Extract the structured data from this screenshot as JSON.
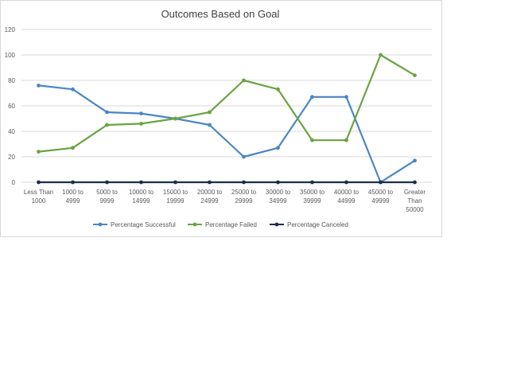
{
  "chart_data": {
    "type": "line",
    "title": "Outcomes Based on Goal",
    "xlabel": "",
    "ylabel": "",
    "ylim": [
      0,
      120
    ],
    "yticks": [
      0,
      20,
      40,
      60,
      80,
      100,
      120
    ],
    "grid": true,
    "legend_position": "bottom",
    "categories": [
      [
        "Less Than",
        "1000"
      ],
      [
        "1000 to",
        "4999"
      ],
      [
        "5000 to",
        "9999"
      ],
      [
        "10000 to",
        "14999"
      ],
      [
        "15000 to",
        "19999"
      ],
      [
        "20000 to",
        "24999"
      ],
      [
        "25000 to",
        "29999"
      ],
      [
        "30000 to",
        "34999"
      ],
      [
        "35000 to",
        "39999"
      ],
      [
        "40000 to",
        "44999"
      ],
      [
        "45000 to",
        "49999"
      ],
      [
        "Greater",
        "Than",
        "50000"
      ]
    ],
    "series": [
      {
        "name": "Percentage Successful",
        "color": "#4a86c5",
        "values": [
          76,
          73,
          55,
          54,
          50,
          45,
          20,
          27,
          67,
          67,
          0,
          17
        ]
      },
      {
        "name": "Percentage Failed",
        "color": "#6aa342",
        "values": [
          24,
          27,
          45,
          46,
          50,
          55,
          80,
          73,
          33,
          33,
          100,
          84
        ]
      },
      {
        "name": "Percentage Canceled",
        "color": "#1f2d4d",
        "values": [
          0,
          0,
          0,
          0,
          0,
          0,
          0,
          0,
          0,
          0,
          0,
          0
        ]
      }
    ]
  }
}
